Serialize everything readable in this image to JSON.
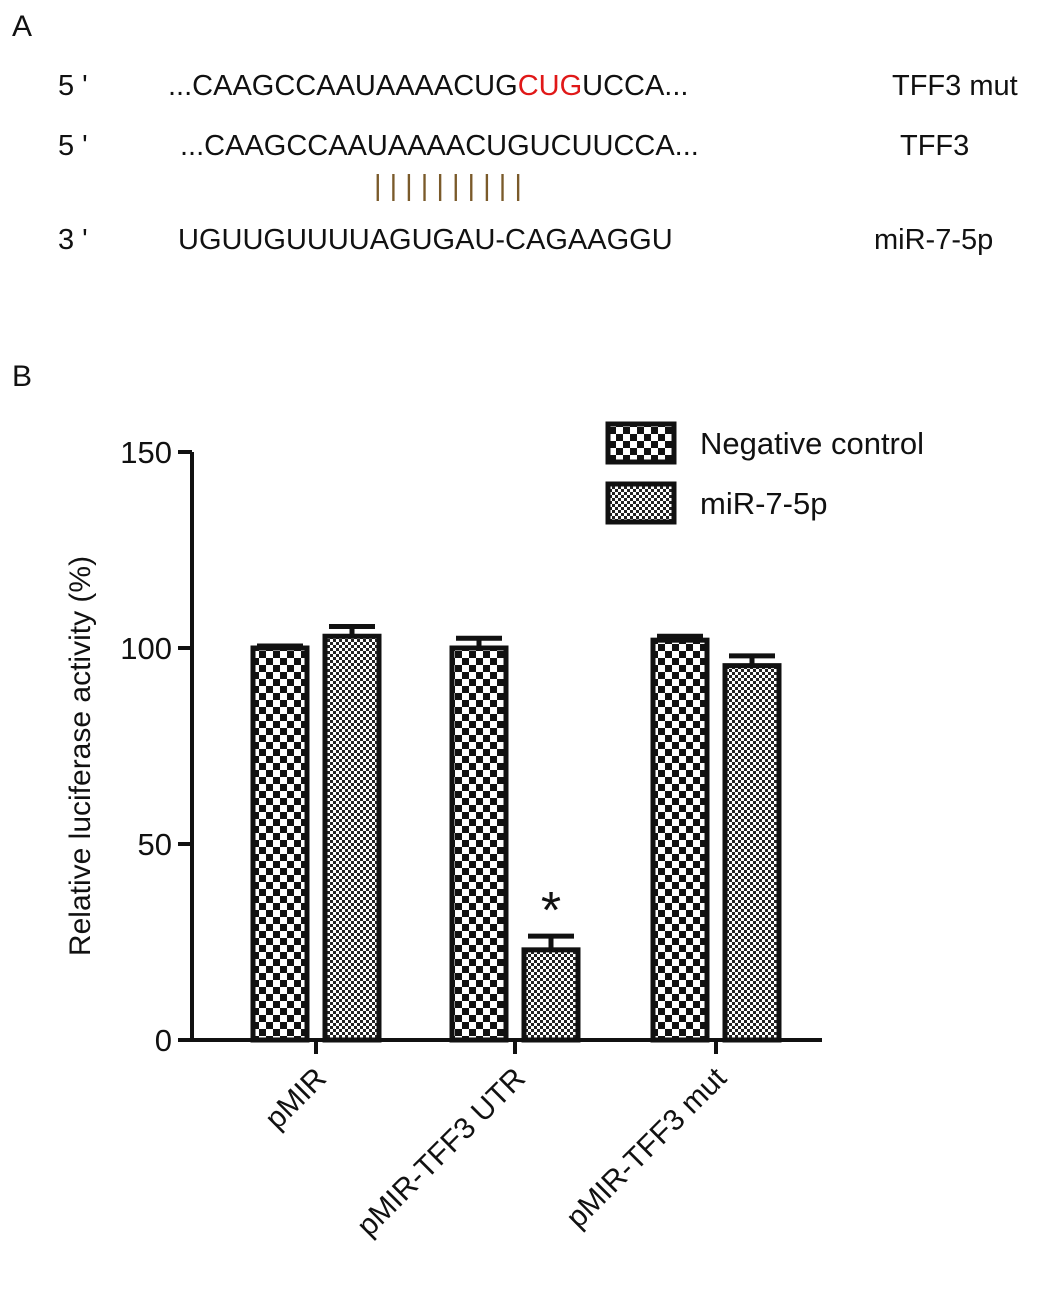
{
  "panel_a": {
    "label": "A",
    "rows": [
      {
        "end": "5 '",
        "prefix": "...CAAGCCAAUAAAACUG",
        "highlight": "CUG",
        "suffix": "UCCA...",
        "name": "TFF3 mut"
      },
      {
        "end": "5 '",
        "prefix": "...CAAGCCAAUAAAACUGUCUUCCA...",
        "highlight": "",
        "suffix": "",
        "name": "TFF3"
      },
      {
        "end": "3 '",
        "prefix": "UGUUGUUUUAGUGAU-CAGAAGGU",
        "highlight": "",
        "suffix": "",
        "name": "miR-7-5p"
      }
    ],
    "pairing_marks": "| | |                    | | | | | | |",
    "highlight_color": "#e01818"
  },
  "panel_b": {
    "label": "B"
  },
  "chart_data": {
    "type": "bar",
    "ylabel": "Relative luciferase activity (%)",
    "xlabel": "",
    "ylim": [
      0,
      150
    ],
    "yticks": [
      0,
      50,
      100,
      150
    ],
    "categories": [
      "pMIR",
      "pMIR-TFF3 UTR",
      "pMIR-TFF3 mut"
    ],
    "series": [
      {
        "name": "Negative control",
        "values": [
          100,
          100,
          102
        ],
        "errors": [
          0.5,
          2.5,
          1
        ],
        "pattern": "large-checker"
      },
      {
        "name": "miR-7-5p",
        "values": [
          103,
          23,
          95.5
        ],
        "errors": [
          2.5,
          3.5,
          2.5
        ],
        "pattern": "fine-checker"
      }
    ],
    "annotations": [
      {
        "text": "*",
        "category": "pMIR-TFF3 UTR",
        "series": "miR-7-5p"
      }
    ],
    "legend_position": "top-right",
    "grid": false
  }
}
